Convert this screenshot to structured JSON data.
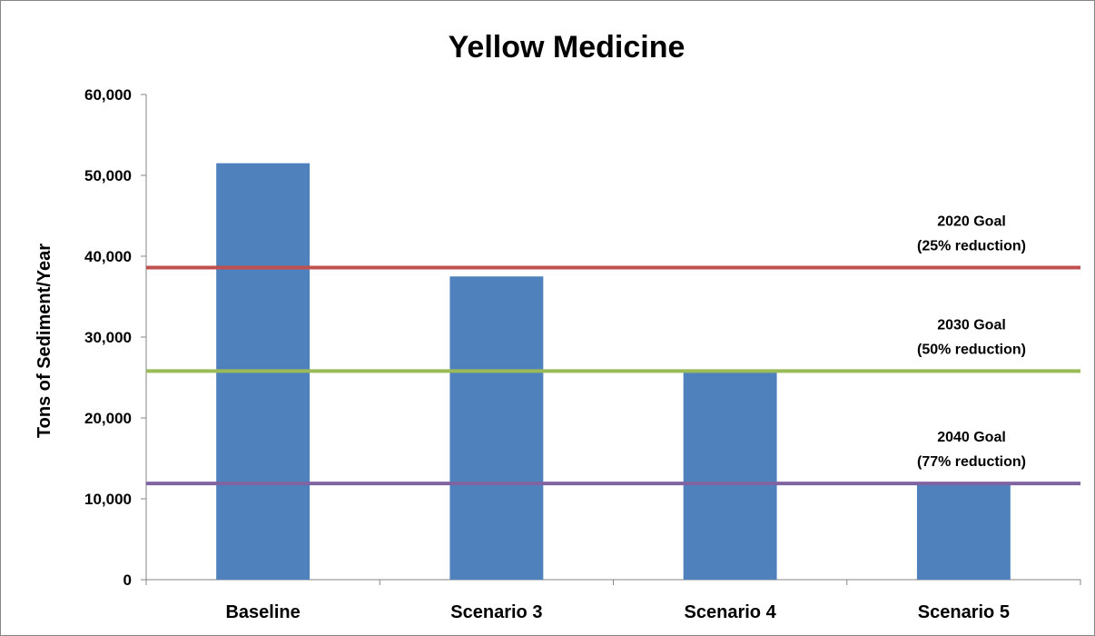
{
  "chart_data": {
    "type": "bar",
    "title": "Yellow Medicine",
    "xlabel": "",
    "ylabel": "Tons of Sediment/Year",
    "ylim": [
      0,
      60000
    ],
    "yticks": [
      0,
      10000,
      20000,
      30000,
      40000,
      50000,
      60000
    ],
    "ytick_labels": [
      "0",
      "10,000",
      "20,000",
      "30,000",
      "40,000",
      "50,000",
      "60,000"
    ],
    "grid": false,
    "legend": "none",
    "categories": [
      "Baseline",
      "Scenario 3",
      "Scenario 4",
      "Scenario 5"
    ],
    "values": [
      51500,
      37500,
      25800,
      11800
    ],
    "bar_color": "#4f81bd",
    "goal_lines": [
      {
        "value": 38600,
        "label_line1": "2020 Goal",
        "label_line2": "(25% reduction)",
        "color": "#c0504d"
      },
      {
        "value": 25800,
        "label_line1": "2030 Goal",
        "label_line2": "(50% reduction)",
        "color": "#9bbb59"
      },
      {
        "value": 11900,
        "label_line1": "2040 Goal",
        "label_line2": "(77% reduction)",
        "color": "#8064a2"
      }
    ]
  }
}
